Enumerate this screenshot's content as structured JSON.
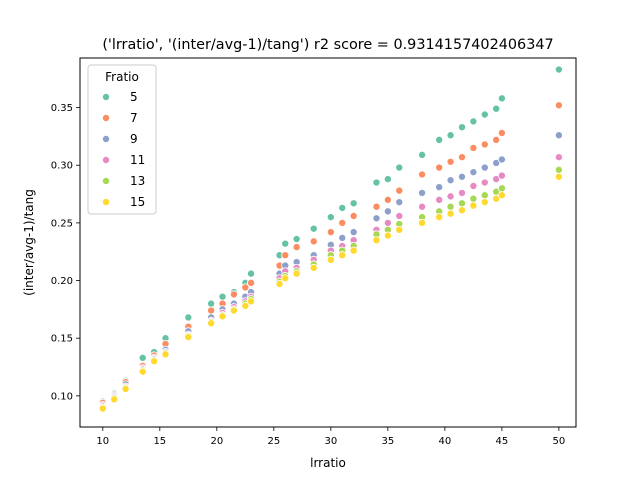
{
  "chart_data": {
    "type": "scatter",
    "title": "('lrratio', '(inter/avg-1)/tang') r2 score = 0.9314157402406347",
    "xlabel": "lrratio",
    "ylabel": "(inter/avg-1)/tang",
    "xlim": [
      8,
      51.5
    ],
    "ylim": [
      0.073,
      0.393
    ],
    "x_ticks": [
      10,
      15,
      20,
      25,
      30,
      35,
      40,
      45,
      50
    ],
    "x_tick_labels": [
      "10",
      "15",
      "20",
      "25",
      "30",
      "35",
      "40",
      "45",
      "50"
    ],
    "y_ticks": [
      0.1,
      0.15,
      0.2,
      0.25,
      0.3,
      0.35
    ],
    "y_tick_labels": [
      "0.10",
      "0.15",
      "0.20",
      "0.25",
      "0.30",
      "0.35"
    ],
    "grid": false,
    "legend": {
      "title": "Fratio",
      "placement": "top-left"
    },
    "x": [
      10,
      11,
      12,
      13.5,
      14.5,
      15.5,
      17.5,
      19.5,
      20.5,
      21.5,
      22.5,
      23,
      25.5,
      26,
      27,
      28.5,
      30,
      31,
      32,
      34,
      35,
      36,
      38,
      39.5,
      40.5,
      41.5,
      42.5,
      43.5,
      44.5,
      45,
      50
    ],
    "series": [
      {
        "name": "5",
        "color": "#66c2a5",
        "values": [
          0.095,
          0.102,
          0.113,
          0.133,
          0.138,
          0.15,
          0.168,
          0.18,
          0.186,
          0.19,
          0.198,
          0.206,
          0.222,
          0.232,
          0.236,
          0.245,
          0.255,
          0.263,
          0.267,
          0.285,
          0.288,
          0.298,
          0.309,
          0.322,
          0.326,
          0.333,
          0.338,
          0.344,
          0.349,
          0.358,
          0.383
        ]
      },
      {
        "name": "7",
        "color": "#fc8d62",
        "values": [
          0.094,
          0.101,
          0.112,
          0.126,
          0.135,
          0.145,
          0.16,
          0.174,
          0.18,
          0.188,
          0.194,
          0.198,
          0.213,
          0.222,
          0.229,
          0.234,
          0.242,
          0.25,
          0.256,
          0.264,
          0.27,
          0.278,
          0.292,
          0.298,
          0.303,
          0.307,
          0.315,
          0.318,
          0.322,
          0.328,
          0.352
        ]
      },
      {
        "name": "9",
        "color": "#8da0cb",
        "values": [
          0.092,
          0.1,
          0.11,
          0.124,
          0.133,
          0.14,
          0.156,
          0.168,
          0.175,
          0.18,
          0.186,
          0.19,
          0.206,
          0.213,
          0.216,
          0.222,
          0.231,
          0.237,
          0.242,
          0.254,
          0.26,
          0.268,
          0.276,
          0.281,
          0.287,
          0.29,
          0.294,
          0.298,
          0.302,
          0.305,
          0.326
        ]
      },
      {
        "name": "11",
        "color": "#e78ac3",
        "values": [
          0.091,
          0.099,
          0.108,
          0.123,
          0.132,
          0.138,
          0.153,
          0.165,
          0.172,
          0.177,
          0.182,
          0.186,
          0.202,
          0.208,
          0.211,
          0.218,
          0.226,
          0.23,
          0.235,
          0.244,
          0.25,
          0.256,
          0.264,
          0.27,
          0.273,
          0.276,
          0.282,
          0.285,
          0.288,
          0.291,
          0.307
        ]
      },
      {
        "name": "13",
        "color": "#a6d854",
        "values": [
          0.09,
          0.098,
          0.107,
          0.122,
          0.131,
          0.137,
          0.152,
          0.164,
          0.17,
          0.175,
          0.18,
          0.184,
          0.199,
          0.204,
          0.208,
          0.214,
          0.222,
          0.226,
          0.23,
          0.24,
          0.244,
          0.249,
          0.255,
          0.26,
          0.264,
          0.267,
          0.271,
          0.274,
          0.277,
          0.28,
          0.296
        ]
      },
      {
        "name": "15",
        "color": "#ffd92f",
        "values": [
          0.089,
          0.097,
          0.106,
          0.121,
          0.13,
          0.136,
          0.151,
          0.163,
          0.169,
          0.174,
          0.178,
          0.182,
          0.197,
          0.202,
          0.206,
          0.211,
          0.218,
          0.222,
          0.226,
          0.235,
          0.239,
          0.244,
          0.25,
          0.255,
          0.258,
          0.261,
          0.265,
          0.268,
          0.271,
          0.274,
          0.29
        ]
      }
    ]
  }
}
